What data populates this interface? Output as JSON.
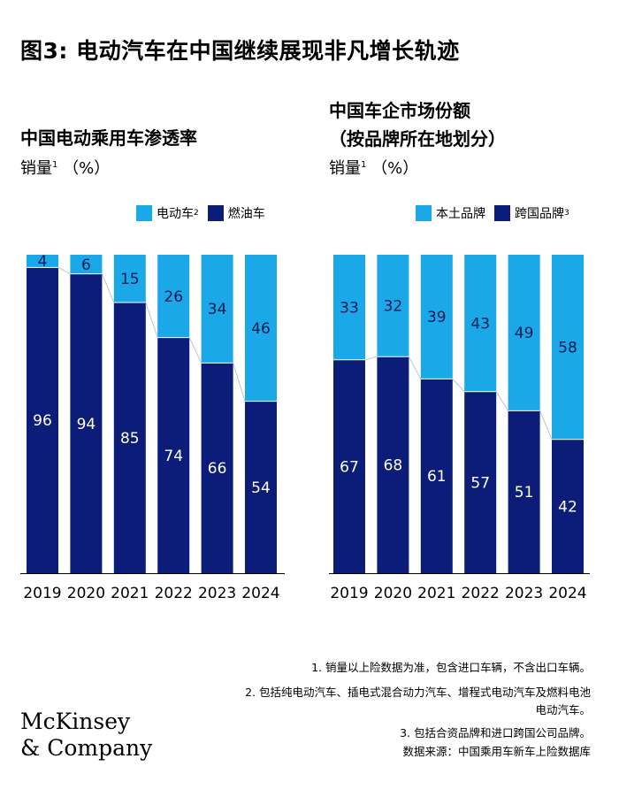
{
  "title": "图3: 电动汽车在中国继续展现非凡增长轨迹",
  "colors": {
    "light": "#1aa8e8",
    "dark": "#0b1d78",
    "label_on_light": "#0a1a52",
    "label_on_dark": "#ffffff"
  },
  "charts": {
    "left": {
      "title": "中国电动乘用车渗透率",
      "unit": "销量",
      "unit_sup": "1",
      "unit_tail": " （%）",
      "legend": [
        {
          "label": "电动车",
          "sup": "2",
          "color": "#1aa8e8"
        },
        {
          "label": "燃油车",
          "sup": "",
          "color": "#0b1d78"
        }
      ]
    },
    "right": {
      "title_line1": "中国车企市场份额",
      "title_line2": "（按品牌所在地划分）",
      "unit": "销量",
      "unit_sup": "1",
      "unit_tail": " （%）",
      "legend": [
        {
          "label": "本土品牌",
          "sup": "",
          "color": "#1aa8e8"
        },
        {
          "label": "跨国品牌",
          "sup": "3",
          "color": "#0b1d78"
        }
      ]
    }
  },
  "chart_data": [
    {
      "type": "bar",
      "stacked": true,
      "title": "中国电动乘用车渗透率",
      "ylabel": "销量（%）",
      "ylim": [
        0,
        100
      ],
      "categories": [
        "2019",
        "2020",
        "2021",
        "2022",
        "2023",
        "2024"
      ],
      "series": [
        {
          "name": "燃油车",
          "values": [
            96,
            94,
            85,
            74,
            66,
            54
          ]
        },
        {
          "name": "电动车",
          "values": [
            4,
            6,
            15,
            26,
            34,
            46
          ]
        }
      ]
    },
    {
      "type": "bar",
      "stacked": true,
      "title": "中国车企市场份额（按品牌所在地划分）",
      "ylabel": "销量（%）",
      "ylim": [
        0,
        100
      ],
      "categories": [
        "2019",
        "2020",
        "2021",
        "2022",
        "2023",
        "2024"
      ],
      "series": [
        {
          "name": "跨国品牌",
          "values": [
            67,
            68,
            61,
            57,
            51,
            42
          ]
        },
        {
          "name": "本土品牌",
          "values": [
            33,
            32,
            39,
            43,
            49,
            58
          ]
        }
      ]
    }
  ],
  "footnotes": {
    "note1": "1.  销量以上险数据为准，包含进口车辆，不含出口车辆。",
    "note2_line1": "2.  包括纯电动汽车、插电式混合动力汽车、增程式电动汽车及燃料电池",
    "note2_line2": "电动汽车。",
    "note3": "3.  包括合资品牌和进口跨国公司品牌。",
    "source": "数据来源：中国乘用车新车上险数据库"
  },
  "logo": {
    "line1": "McKinsey",
    "line2": "& Company"
  }
}
